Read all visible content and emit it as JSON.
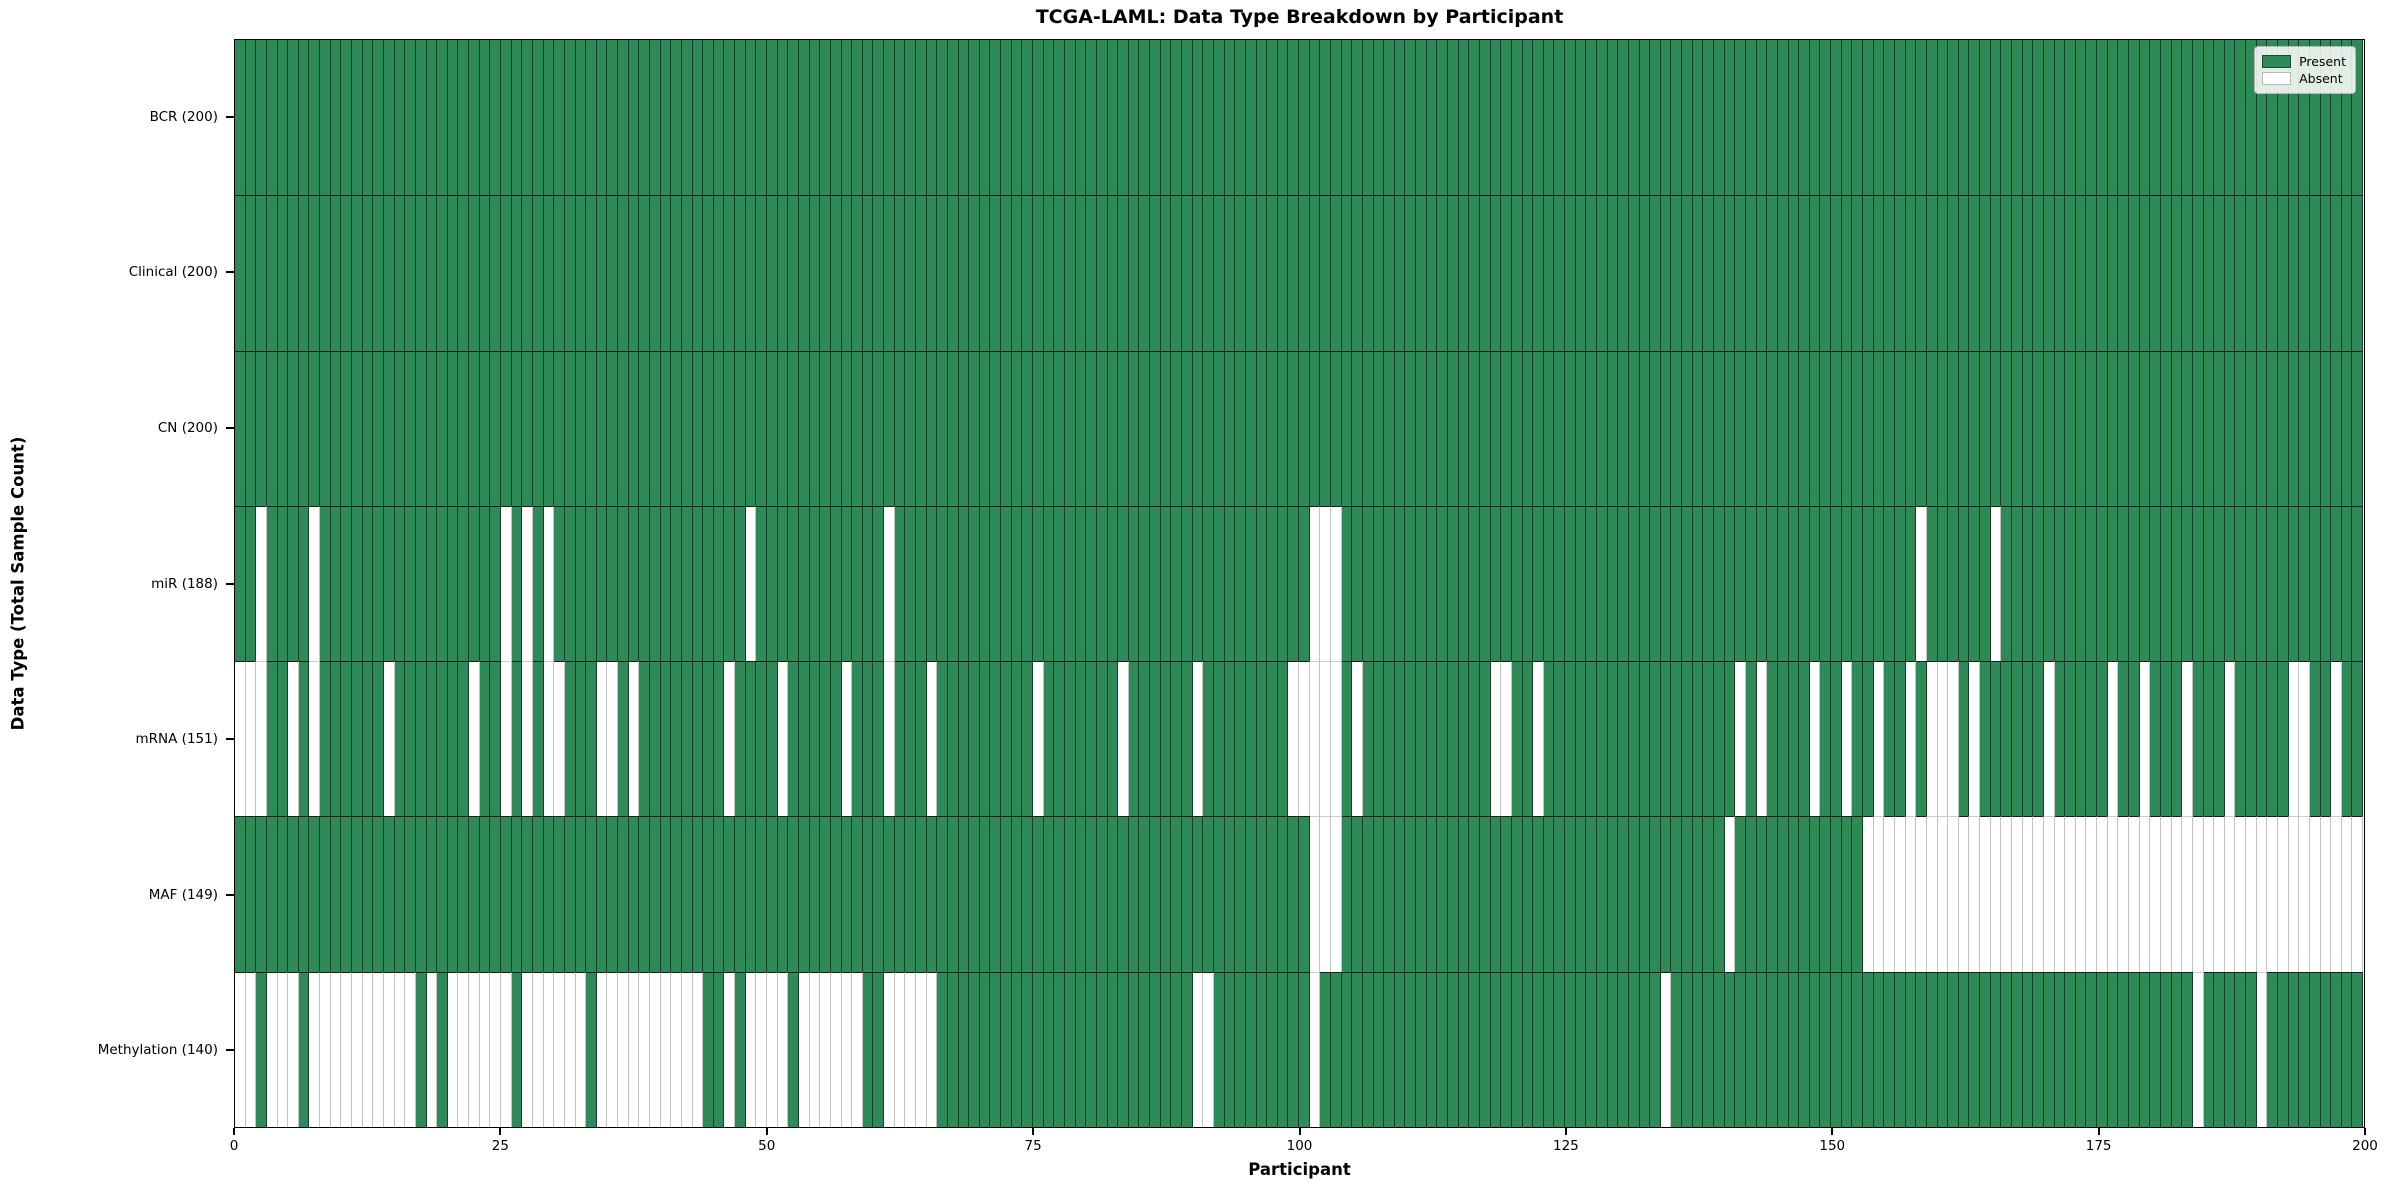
{
  "figure": {
    "title": "TCGA-LAML: Data Type Breakdown by Participant",
    "xlabel": "Participant",
    "ylabel": "Data Type (Total Sample Count)"
  },
  "legend": {
    "present_label": "Present",
    "absent_label": "Absent",
    "position": "upper right"
  },
  "chart_data": {
    "type": "heatmap",
    "title": "TCGA-LAML: Data Type Breakdown by Participant",
    "xlabel": "Participant",
    "ylabel": "Data Type (Total Sample Count)",
    "n_participants": 200,
    "x_ticks": [
      0,
      25,
      50,
      75,
      100,
      125,
      150,
      175,
      200
    ],
    "xlim": [
      0,
      200
    ],
    "grid": false,
    "legend": [
      "Present",
      "Absent"
    ],
    "legend_position": "upper right",
    "colors": {
      "present": "#2e8b57",
      "absent": "#ffffff",
      "present_edge": "rgba(0,0,0,0.55)",
      "absent_edge": "#c2c2c2",
      "row_boundary_dark": "#1a1a1a",
      "row_boundary_light": "#cccccc"
    },
    "rows": [
      {
        "label": "BCR (200)",
        "name": "BCR",
        "present_count": 200,
        "absent_columns": []
      },
      {
        "label": "Clinical (200)",
        "name": "Clinical",
        "present_count": 200,
        "absent_columns": []
      },
      {
        "label": "CN (200)",
        "name": "CN",
        "present_count": 200,
        "absent_columns": []
      },
      {
        "label": "miR (188)",
        "name": "miR",
        "present_count": 188,
        "absent_columns": [
          2,
          7,
          25,
          27,
          29,
          48,
          61,
          101,
          102,
          103,
          158,
          165
        ]
      },
      {
        "label": "mRNA (151)",
        "name": "mRNA",
        "present_count": 151,
        "absent_columns": [
          0,
          1,
          2,
          5,
          7,
          14,
          22,
          25,
          27,
          29,
          30,
          34,
          35,
          37,
          46,
          51,
          57,
          61,
          65,
          75,
          83,
          90,
          99,
          100,
          101,
          102,
          103,
          105,
          118,
          119,
          122,
          141,
          143,
          148,
          151,
          154,
          157,
          159,
          160,
          161,
          163,
          170,
          176,
          179,
          183,
          187,
          193,
          194,
          197
        ]
      },
      {
        "label": "MAF (149)",
        "name": "MAF",
        "present_count": 149,
        "absent_columns": [
          101,
          102,
          103,
          140,
          153,
          154,
          155,
          156,
          157,
          158,
          159,
          160,
          161,
          162,
          163,
          164,
          165,
          166,
          167,
          168,
          169,
          170,
          171,
          172,
          173,
          174,
          175,
          176,
          177,
          178,
          179,
          180,
          181,
          182,
          183,
          184,
          185,
          186,
          187,
          188,
          189,
          190,
          191,
          192,
          193,
          194,
          195,
          196,
          197,
          198,
          199
        ]
      },
      {
        "label": "Methylation (140)",
        "name": "Methylation",
        "present_count": 140,
        "absent_columns": [
          0,
          1,
          3,
          4,
          5,
          7,
          8,
          9,
          10,
          11,
          12,
          13,
          14,
          15,
          16,
          18,
          20,
          21,
          22,
          23,
          24,
          25,
          27,
          28,
          29,
          30,
          31,
          32,
          34,
          35,
          36,
          37,
          38,
          39,
          40,
          41,
          42,
          43,
          46,
          48,
          49,
          50,
          51,
          53,
          54,
          55,
          56,
          57,
          58,
          61,
          62,
          63,
          64,
          65,
          90,
          91,
          101,
          134,
          184,
          190
        ]
      }
    ]
  }
}
